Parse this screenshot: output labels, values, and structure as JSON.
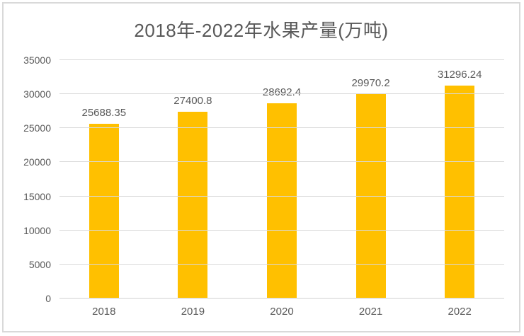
{
  "chart_data": {
    "type": "bar",
    "title": "2018年-2022年水果产量(万吨)",
    "categories": [
      "2018",
      "2019",
      "2020",
      "2021",
      "2022"
    ],
    "values": [
      25688.35,
      27400.8,
      28692.4,
      29970.2,
      31296.24
    ],
    "value_labels": [
      "25688.35",
      "27400.8",
      "28692.4",
      "29970.2",
      "31296.24"
    ],
    "xlabel": "",
    "ylabel": "",
    "ylim": [
      0,
      35000
    ],
    "ytick_step": 5000,
    "ytick_labels": [
      "0",
      "5000",
      "10000",
      "15000",
      "20000",
      "25000",
      "30000",
      "35000"
    ],
    "grid": true,
    "legend_position": "none",
    "bar_color": "#FFC000",
    "gridline_color": "#D9D9D9",
    "axis_line_color": "#D0D0D0",
    "text_color": "#595959",
    "frame_border_color": "#D9D9D9",
    "background": "#FFFFFF"
  }
}
